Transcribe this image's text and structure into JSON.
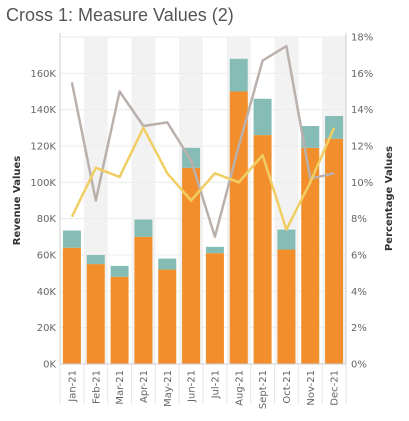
{
  "chart_data": {
    "title": "Cross 1: Measure Values (2)",
    "type": "bar+line",
    "categories": [
      "Jan-21",
      "Feb-21",
      "Mar-21",
      "Apr-21",
      "May-21",
      "Jun-21",
      "Jul-21",
      "Aug-21",
      "Sept-21",
      "Oct-21",
      "Nov-21",
      "Dec-21"
    ],
    "left_axis": {
      "label": "Revenue Values",
      "ylim": [
        0,
        180000
      ],
      "ticks": [
        0,
        20000,
        40000,
        60000,
        80000,
        100000,
        120000,
        140000,
        160000
      ],
      "tick_labels": [
        "0K",
        "20K",
        "40K",
        "60K",
        "80K",
        "100K",
        "120K",
        "140K",
        "160K"
      ]
    },
    "right_axis": {
      "label": "Percentage Values",
      "ylim": [
        0,
        0.18
      ],
      "ticks": [
        0,
        0.02,
        0.04,
        0.06,
        0.08,
        0.1,
        0.12,
        0.14,
        0.16,
        0.18
      ],
      "tick_labels": [
        "0%",
        "2%",
        "4%",
        "6%",
        "8%",
        "10%",
        "12%",
        "14%",
        "16%",
        "18%"
      ]
    },
    "bar_series": [
      {
        "color": "#f28e2b",
        "values": [
          64000,
          55000,
          48000,
          70000,
          52000,
          108000,
          61000,
          150000,
          126000,
          63000,
          119000,
          124000
        ]
      },
      {
        "color": "#86bcb6",
        "values": [
          9500,
          5000,
          6000,
          9500,
          6000,
          11000,
          3500,
          18000,
          20000,
          11000,
          12000,
          12500
        ]
      }
    ],
    "line_series": [
      {
        "color": "#bab0ac",
        "values": [
          0.155,
          0.09,
          0.15,
          0.131,
          0.133,
          0.112,
          0.07,
          0.12,
          0.167,
          0.175,
          0.102,
          0.105
        ]
      },
      {
        "color": "#f1ce63",
        "values": [
          0.081,
          0.108,
          0.103,
          0.13,
          0.105,
          0.09,
          0.105,
          0.1,
          0.115,
          0.074,
          0.1,
          0.13
        ]
      }
    ],
    "colors": {
      "stripe": "#f2f2f2",
      "grid": "#ececec",
      "axis": "#cccccc"
    },
    "grid": true,
    "legend": "none"
  }
}
